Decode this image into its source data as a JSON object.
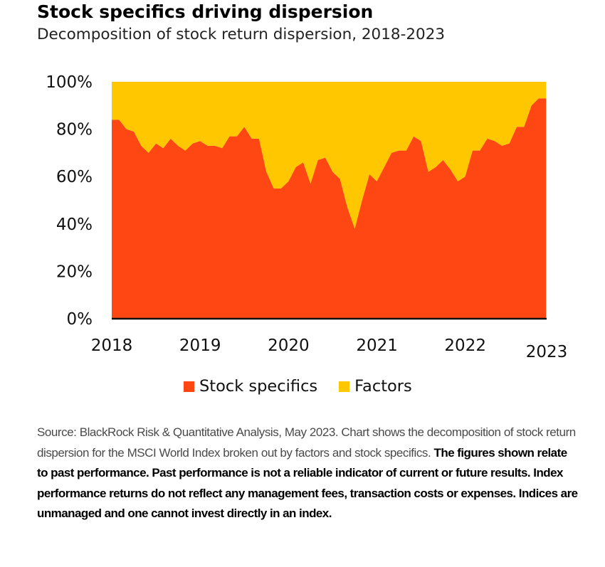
{
  "header": {
    "title": "Stock specifics driving dispersion",
    "subtitle": "Decomposition of stock return dispersion, 2018-2023"
  },
  "legend": [
    {
      "label": "Stock specifics",
      "color": "#ff4713"
    },
    {
      "label": "Factors",
      "color": "#ffc700"
    }
  ],
  "footnote": {
    "normal": "Source: BlackRock Risk & Quantitative Analysis, May 2023. Chart shows the decomposition of stock return dispersion for the MSCI World Index broken out by factors and stock specifics. ",
    "bold": "The figures shown relate to past performance. Past performance is not a reliable indicator of current or future results. Index performance returns do not reflect any management fees, transaction costs or expenses. Indices are unmanaged and one cannot invest directly in an index."
  },
  "chart_data": {
    "type": "area",
    "stacked": true,
    "x_start": 2018.0,
    "x_step": 0.0833,
    "x_ticks": [
      "2018",
      "2019",
      "2020",
      "2021",
      "2022",
      "2023"
    ],
    "y_ticks": [
      "0%",
      "20%",
      "40%",
      "60%",
      "80%",
      "100%"
    ],
    "ylim": [
      0,
      100
    ],
    "xlim": [
      2018,
      2022.92
    ],
    "series": [
      {
        "name": "Stock specifics",
        "color": "#ff4713",
        "values": [
          84,
          84,
          80,
          79,
          73,
          70,
          74,
          72,
          76,
          73,
          71,
          74,
          75,
          73,
          73,
          72,
          77,
          77,
          81,
          76,
          76,
          62,
          55,
          55,
          58,
          64,
          66,
          57,
          67,
          68,
          62,
          59,
          47,
          38,
          50,
          61,
          58,
          64,
          70,
          71,
          71,
          77,
          75,
          62,
          64,
          67,
          63,
          58,
          60,
          71,
          71,
          76,
          75,
          73,
          74,
          81,
          81,
          90,
          93,
          93
        ]
      },
      {
        "name": "Factors",
        "color": "#ffc700",
        "values": [
          16,
          16,
          20,
          21,
          27,
          30,
          26,
          28,
          24,
          27,
          29,
          26,
          25,
          27,
          27,
          28,
          23,
          23,
          19,
          24,
          24,
          38,
          45,
          45,
          42,
          36,
          34,
          43,
          33,
          32,
          38,
          41,
          53,
          62,
          50,
          39,
          42,
          36,
          30,
          29,
          29,
          23,
          25,
          38,
          36,
          33,
          37,
          42,
          40,
          29,
          29,
          24,
          25,
          27,
          26,
          19,
          19,
          10,
          7,
          7
        ]
      }
    ],
    "grid": false,
    "legend_position": "bottom"
  }
}
